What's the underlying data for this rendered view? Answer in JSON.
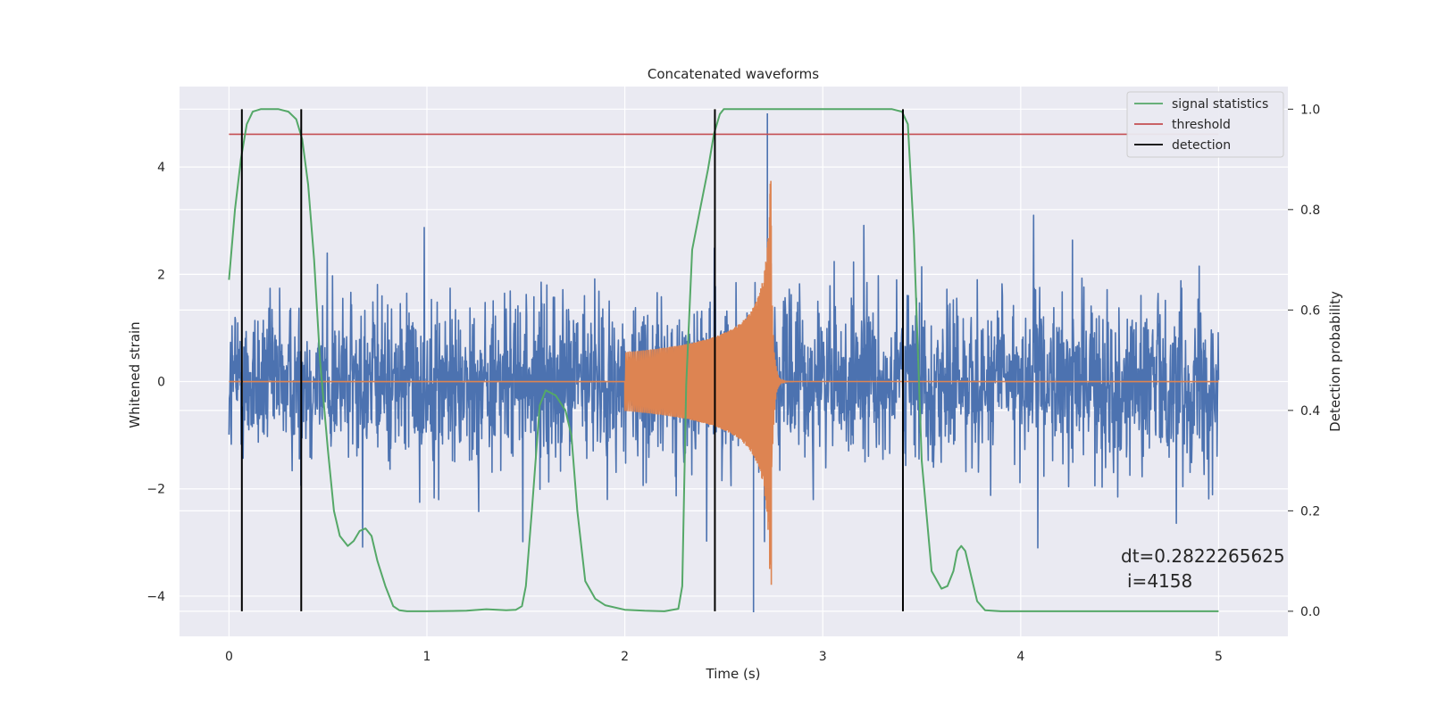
{
  "chart_data": {
    "type": "line",
    "title": "Concatenated waveforms",
    "xlabel": "Time (s)",
    "ylabel": "Whitened strain",
    "y2label": "Detection probability",
    "xlim": [
      -0.25,
      5.35
    ],
    "ylim": [
      -4.75,
      5.5
    ],
    "y2lim": [
      -0.05,
      1.045
    ],
    "xticks": [
      0,
      1,
      2,
      3,
      4,
      5
    ],
    "yticks": [
      -4,
      -2,
      0,
      2,
      4
    ],
    "y2ticks": [
      0.0,
      0.2,
      0.4,
      0.6,
      0.8,
      1.0
    ],
    "xtick_labels": [
      "0",
      "1",
      "2",
      "3",
      "4",
      "5"
    ],
    "ytick_labels": [
      "−4",
      "−2",
      "0",
      "2",
      "4"
    ],
    "y2tick_labels": [
      "0.0",
      "0.2",
      "0.4",
      "0.6",
      "0.8",
      "1.0"
    ],
    "grid": true,
    "legend_position": "top-right",
    "colors": {
      "background": "#eaeaf2",
      "grid": "#ffffff",
      "strain": "#4c72b0",
      "template": "#dd8452",
      "signal_statistics": "#55a868",
      "threshold": "#c44e52",
      "detection": "#000000"
    },
    "series": [
      {
        "name": "signal statistics",
        "axis": "right",
        "x": [
          0.0,
          0.03,
          0.06,
          0.09,
          0.12,
          0.16,
          0.2,
          0.25,
          0.3,
          0.34,
          0.37,
          0.4,
          0.43,
          0.46,
          0.5,
          0.53,
          0.56,
          0.6,
          0.63,
          0.66,
          0.69,
          0.72,
          0.75,
          0.79,
          0.83,
          0.86,
          0.9,
          1.0,
          1.2,
          1.3,
          1.4,
          1.45,
          1.48,
          1.5,
          1.53,
          1.57,
          1.6,
          1.65,
          1.7,
          1.73,
          1.76,
          1.8,
          1.85,
          1.9,
          2.0,
          2.1,
          2.2,
          2.27,
          2.29,
          2.31,
          2.34,
          2.38,
          2.42,
          2.45,
          2.48,
          2.5,
          2.6,
          2.8,
          3.0,
          3.2,
          3.35,
          3.4,
          3.43,
          3.46,
          3.5,
          3.55,
          3.6,
          3.63,
          3.66,
          3.68,
          3.7,
          3.72,
          3.75,
          3.78,
          3.82,
          3.9,
          4.2,
          4.6,
          5.0
        ],
        "values": [
          0.66,
          0.8,
          0.9,
          0.97,
          0.995,
          1.0,
          1.0,
          1.0,
          0.995,
          0.98,
          0.94,
          0.85,
          0.7,
          0.5,
          0.32,
          0.2,
          0.15,
          0.13,
          0.14,
          0.16,
          0.165,
          0.15,
          0.1,
          0.05,
          0.01,
          0.002,
          0.0,
          0.0,
          0.001,
          0.004,
          0.002,
          0.003,
          0.01,
          0.05,
          0.2,
          0.41,
          0.44,
          0.43,
          0.4,
          0.35,
          0.2,
          0.06,
          0.025,
          0.012,
          0.003,
          0.001,
          0.0,
          0.005,
          0.05,
          0.45,
          0.72,
          0.8,
          0.88,
          0.95,
          0.99,
          1.0,
          1.0,
          1.0,
          1.0,
          1.0,
          1.0,
          0.995,
          0.97,
          0.75,
          0.3,
          0.08,
          0.045,
          0.05,
          0.08,
          0.12,
          0.13,
          0.12,
          0.07,
          0.02,
          0.002,
          0.0,
          0.0,
          0.0,
          0.0
        ]
      },
      {
        "name": "threshold",
        "axis": "right",
        "x": [
          0.0,
          5.0
        ],
        "values": [
          0.95,
          0.95
        ]
      }
    ],
    "strain_noise": {
      "axis": "left",
      "x_range": [
        0.0,
        5.0
      ],
      "envelope": [
        -2.6,
        2.6
      ],
      "max_spike": 5.0,
      "min_spike": -4.3
    },
    "template_chirp": {
      "axis": "left",
      "x_range": [
        2.0,
        2.75
      ],
      "peak_time": 2.74,
      "peak_amplitude": 3.9
    },
    "detections": {
      "name": "detection",
      "axis": "right",
      "x": [
        0.065,
        0.365,
        2.455,
        3.405
      ],
      "range": [
        0.0,
        1.0
      ]
    },
    "annotations": [
      "dt=0.2822265625",
      "i=4158"
    ]
  }
}
